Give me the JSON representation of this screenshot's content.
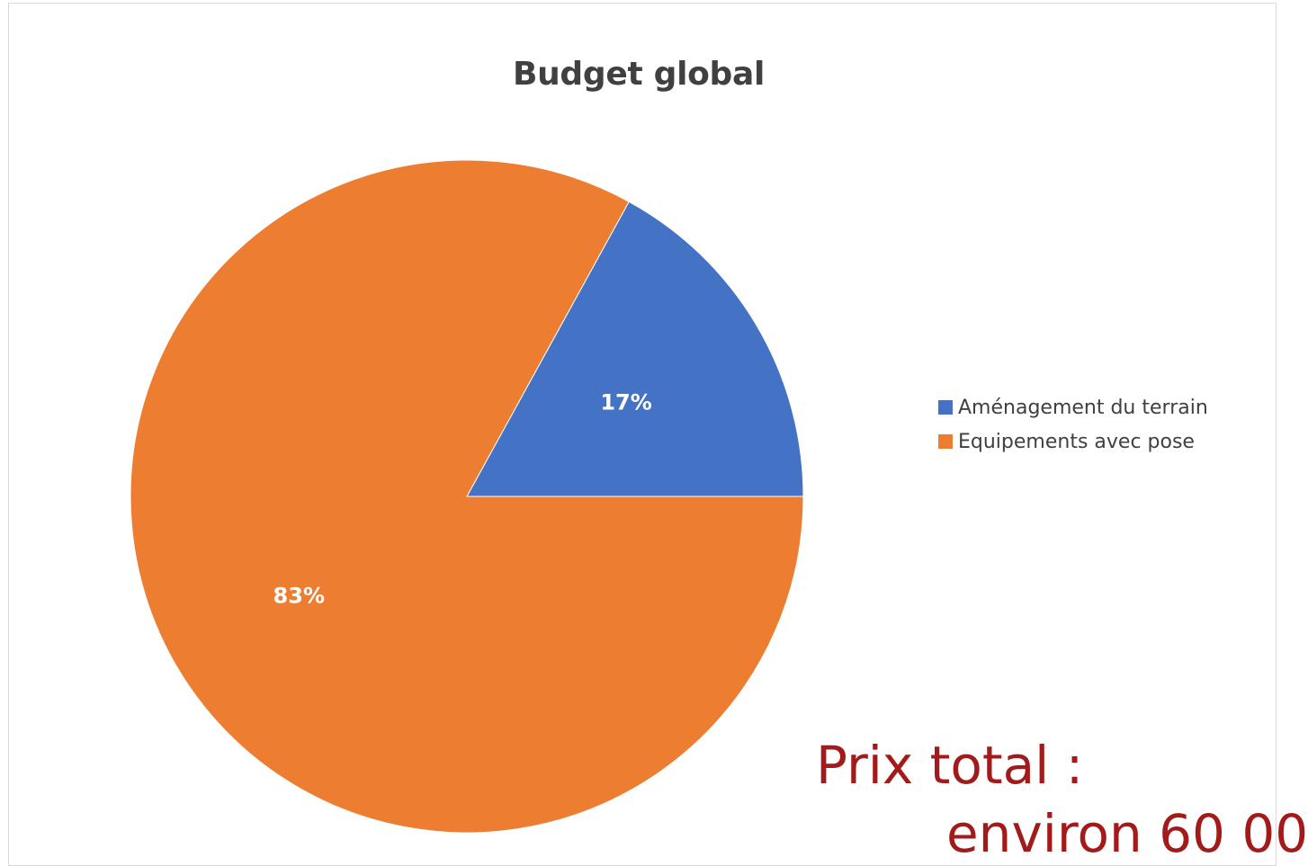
{
  "chart_data": {
    "type": "pie",
    "title": "Budget global",
    "slices": [
      {
        "name": "Aménagement du terrain",
        "value": 17,
        "label": "17%",
        "color": "#4472c4"
      },
      {
        "name": "Equipements avec pose",
        "value": 83,
        "label": "83%",
        "color": "#ed7d31"
      }
    ],
    "legend_position": "right"
  },
  "annotation": {
    "price_label": "Prix total :",
    "price_value_partial": "environ 60 00"
  }
}
